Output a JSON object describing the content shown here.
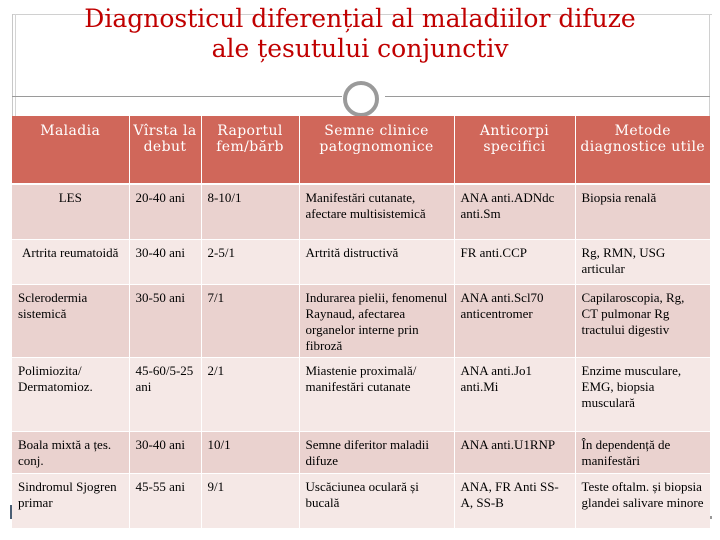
{
  "slide": {
    "title_line1": "Diagnosticul diferențial al maladiilor difuze",
    "title_line2": "ale țesutului conjunctiv"
  },
  "table": {
    "headers": [
      "Maladia",
      "Vîrsta la debut",
      "Raportul fem/bărb",
      "Semne clinice patognomonice",
      "Anticorpi specifici",
      "Metode diagnostice utile"
    ],
    "rows": [
      [
        "LES",
        "20-40 ani",
        "8-10/1",
        "Manifestări cutanate, afectare multisistemică",
        "ANA anti.ADNdc anti.Sm",
        "Biopsia renală"
      ],
      [
        "Artrita reumatoidă",
        "30-40 ani",
        "2-5/1",
        "Artrită distructivă",
        "FR anti.CCP",
        "Rg, RMN, USG articular"
      ],
      [
        "Sclerodermia sistemică",
        "30-50 ani",
        "7/1",
        "Indurarea pielii, fenomenul Raynaud, afectarea organelor interne prin fibroză",
        "ANA anti.Scl70 anticentromer",
        "Capilaroscopia, Rg, CT pulmonar Rg tractului digestiv"
      ],
      [
        "Polimiozita/ Dermatomioz.",
        "45-60/5-25 ani",
        "2/1",
        "Miastenie proximală/ manifestări cutanate",
        "ANA anti.Jo1 anti.Mi",
        "Enzime musculare, EMG, biopsia musculară"
      ],
      [
        "Boala mixtă a țes. conj.",
        "30-40 ani",
        "10/1",
        "Semne diferitor maladii difuze",
        "ANA anti.U1RNP",
        "În dependență de manifestări"
      ],
      [
        "Sindromul Sjogren primar",
        "45-55 ani",
        "9/1",
        "Uscăciunea oculară și bucală",
        "ANA, FR Anti SS-A, SS-B",
        "Teste oftalm. și biopsia glandei salivare minore"
      ]
    ]
  }
}
